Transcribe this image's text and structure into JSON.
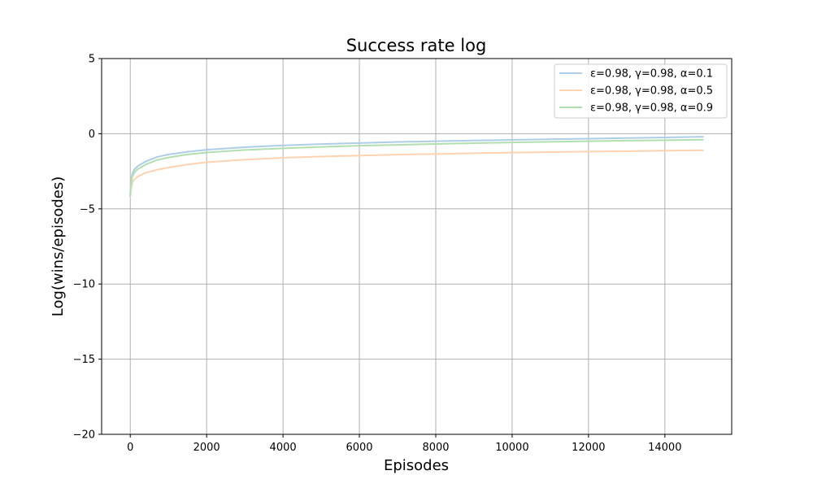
{
  "chart_data": {
    "type": "line",
    "title": "Success rate log",
    "xlabel": "Episodes",
    "ylabel": "Log(wins/episodes)",
    "xlim": [
      -750,
      15750
    ],
    "ylim": [
      -20,
      5
    ],
    "xticks": [
      0,
      2000,
      4000,
      6000,
      8000,
      10000,
      12000,
      14000
    ],
    "yticks": [
      5,
      0,
      -5,
      -10,
      -15,
      -20
    ],
    "xtick_labels": [
      "0",
      "2000",
      "4000",
      "6000",
      "8000",
      "10000",
      "12000",
      "14000"
    ],
    "ytick_labels": [
      "5",
      "0",
      "−5",
      "−10",
      "−15",
      "−20"
    ],
    "grid": true,
    "legend_position": "top-right",
    "series": [
      {
        "name": "ε=0.98, γ=0.98, α=0.1",
        "color": "#aecde6",
        "x": [
          0,
          20,
          50,
          100,
          200,
          400,
          700,
          1000,
          1500,
          2000,
          3000,
          4000,
          5000,
          6000,
          7000,
          8000,
          9000,
          10000,
          11000,
          12000,
          13000,
          14000,
          15000
        ],
        "y": [
          -4.1,
          -3.2,
          -2.7,
          -2.4,
          -2.15,
          -1.85,
          -1.55,
          -1.38,
          -1.2,
          -1.07,
          -0.9,
          -0.78,
          -0.69,
          -0.62,
          -0.55,
          -0.5,
          -0.45,
          -0.41,
          -0.37,
          -0.33,
          -0.29,
          -0.25,
          -0.2
        ]
      },
      {
        "name": "ε=0.98, γ=0.98, α=0.5",
        "color": "#ffd2b0",
        "x": [
          0,
          20,
          50,
          100,
          200,
          400,
          700,
          1000,
          1500,
          2000,
          3000,
          4000,
          5000,
          6000,
          7000,
          8000,
          9000,
          10000,
          11000,
          12000,
          13000,
          14000,
          15000
        ],
        "y": [
          -4.2,
          -3.7,
          -3.3,
          -3.05,
          -2.85,
          -2.6,
          -2.4,
          -2.25,
          -2.05,
          -1.9,
          -1.72,
          -1.6,
          -1.52,
          -1.45,
          -1.39,
          -1.35,
          -1.3,
          -1.26,
          -1.22,
          -1.19,
          -1.16,
          -1.13,
          -1.1
        ]
      },
      {
        "name": "ε=0.98, γ=0.98, α=0.9",
        "color": "#b2dfb0",
        "x": [
          0,
          20,
          50,
          100,
          200,
          400,
          700,
          1000,
          1500,
          2000,
          3000,
          4000,
          5000,
          6000,
          7000,
          8000,
          9000,
          10000,
          11000,
          12000,
          13000,
          14000,
          15000
        ],
        "y": [
          -4.15,
          -3.4,
          -2.9,
          -2.6,
          -2.35,
          -2.05,
          -1.75,
          -1.58,
          -1.38,
          -1.25,
          -1.08,
          -0.97,
          -0.88,
          -0.8,
          -0.74,
          -0.68,
          -0.63,
          -0.58,
          -0.54,
          -0.5,
          -0.46,
          -0.43,
          -0.4
        ]
      }
    ]
  }
}
